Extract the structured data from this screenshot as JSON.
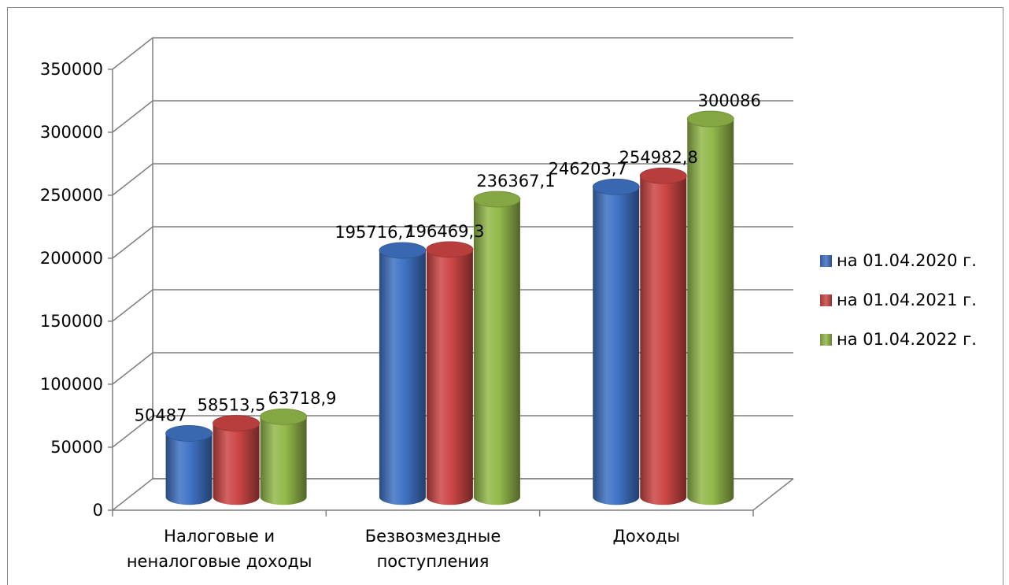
{
  "chart_data": {
    "type": "bar",
    "style": "3d-cylinder",
    "categories": [
      "Налоговые и неналоговые доходы",
      "Безвозмездные поступления",
      "Доходы"
    ],
    "category_lines": [
      [
        "Налоговые и",
        "неналоговые доходы"
      ],
      [
        "Безвозмездные",
        "поступления"
      ],
      [
        "Доходы"
      ]
    ],
    "series": [
      {
        "name": "на 01.04.2020 г.",
        "values": [
          50487,
          195716.7,
          246203.7
        ],
        "labels": [
          "50487",
          "195716,7",
          "246203,7"
        ],
        "color": "#3f72c4"
      },
      {
        "name": "на 01.04.2021 г.",
        "values": [
          58513.5,
          196469.3,
          254982.8
        ],
        "labels": [
          "58513,5",
          "196469,3",
          "254982,8"
        ],
        "color": "#cc4545"
      },
      {
        "name": "на 01.04.2022 г.",
        "values": [
          63718.9,
          236367.1,
          300086
        ],
        "labels": [
          "63718,9",
          "236367,1",
          "300086"
        ],
        "color": "#93b84a"
      }
    ],
    "ylim": [
      0,
      350000
    ],
    "yticks": [
      0,
      50000,
      100000,
      150000,
      200000,
      250000,
      300000,
      350000
    ],
    "ytick_labels": [
      "0",
      "50000",
      "100000",
      "150000",
      "200000",
      "250000",
      "300000",
      "350000"
    ],
    "grid": true,
    "legend_position": "right"
  }
}
